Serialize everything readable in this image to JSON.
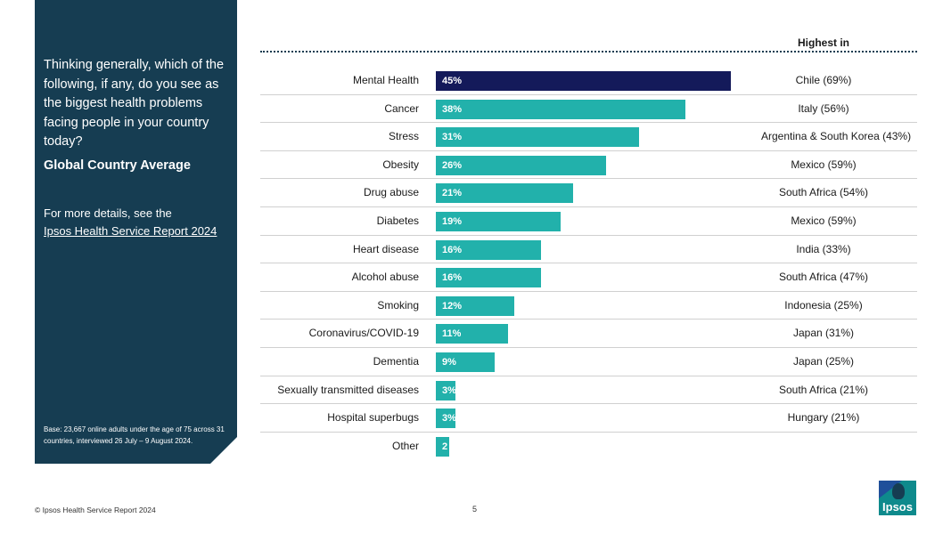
{
  "sidebar": {
    "question": "Thinking generally, which of the following, if any, do you see as the biggest health problems facing people in your country today?",
    "subtitle": "Global Country Average",
    "details_text": "For more details, see the",
    "details_link": "Ipsos Health Service Report 2024",
    "base_note": "Base: 23,667 online adults under the age of 75 across 31 countries, interviewed 26 July – 9 August 2024."
  },
  "chart_data": {
    "type": "bar",
    "orientation": "horizontal",
    "title": "",
    "xlabel": "",
    "ylabel": "",
    "xlim": [
      0,
      100
    ],
    "grid": false,
    "categories": [
      "Mental Health",
      "Cancer",
      "Stress",
      "Obesity",
      "Drug abuse",
      "Diabetes",
      "Heart disease",
      "Alcohol abuse",
      "Smoking",
      "Coronavirus/COVID-19",
      "Dementia",
      "Sexually transmitted diseases",
      "Hospital superbugs",
      "Other"
    ],
    "values": [
      45,
      38,
      31,
      26,
      21,
      19,
      16,
      16,
      12,
      11,
      9,
      3,
      3,
      2
    ],
    "value_labels": [
      "45%",
      "38%",
      "31%",
      "26%",
      "21%",
      "19%",
      "16%",
      "16%",
      "12%",
      "11%",
      "9%",
      "3%",
      "3%",
      "2"
    ],
    "highlight_index": 0,
    "highest_in_header": "Highest in",
    "highest_in": [
      "Chile (69%)",
      "Italy (56%)",
      "Argentina & South Korea (43%)",
      "Mexico (59%)",
      "South Africa (54%)",
      "Mexico (59%)",
      "India (33%)",
      "South Africa (47%)",
      "Indonesia (25%)",
      "Japan (31%)",
      "Japan (25%)",
      "South Africa (21%)",
      "Hungary (21%)",
      ""
    ],
    "bar_color": "#22b1ab",
    "highlight_color": "#141a5a"
  },
  "footer": {
    "copyright": "© Ipsos Health Service Report 2024",
    "page_number": "5"
  },
  "logo": {
    "text": "Ipsos",
    "color": "#0e8a8c"
  }
}
